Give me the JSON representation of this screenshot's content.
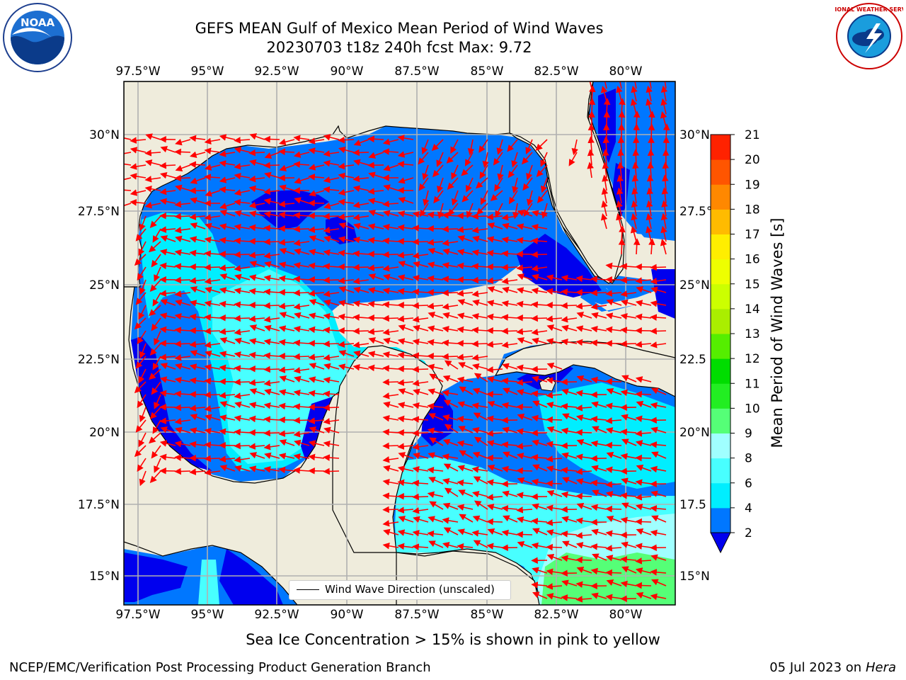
{
  "header": {
    "title_line1": "GEFS MEAN Gulf of Mexico Mean Period of Wind Waves",
    "title_line2": "20230703 t18z 240h fcst   Max: 9.72"
  },
  "logos": {
    "left": {
      "name": "noaa-logo",
      "text": "NOAA"
    },
    "right": {
      "name": "nws-logo",
      "text": "NATIONAL WEATHER SERVICE"
    }
  },
  "map": {
    "lon_ticks": [
      "97.5°W",
      "95°W",
      "92.5°W",
      "90°W",
      "87.5°W",
      "85°W",
      "82.5°W",
      "80°W"
    ],
    "lat_ticks": [
      "30°N",
      "27.5°N",
      "25°N",
      "22.5°N",
      "20°N",
      "17.5°N",
      "15°N"
    ],
    "lat_ticks_right": [
      "30°N",
      "27.5°",
      "25°N",
      "22.5",
      "20°N",
      "17.5",
      "15°N"
    ],
    "colors": {
      "land": "#efecdc",
      "coast": "#000000",
      "grid": "#b0b0b0",
      "arrow": "#ff0000"
    }
  },
  "legend": {
    "label": "Wind Wave Direction (unscaled)"
  },
  "colorbar": {
    "label": "Mean Period of Wind Waves [s]",
    "ticks": [
      "2",
      "4",
      "6",
      "8",
      "9",
      "10",
      "11",
      "12",
      "13",
      "14",
      "15",
      "16",
      "17",
      "18",
      "19",
      "20",
      "21"
    ],
    "colors": [
      "#0077ff",
      "#00eeff",
      "#48ffff",
      "#a0ffff",
      "#55ff77",
      "#22ee22",
      "#00dd00",
      "#55ee00",
      "#aaee00",
      "#ccff00",
      "#eeff00",
      "#ffee00",
      "#ffbb00",
      "#ff8800",
      "#ff5500",
      "#ff2200"
    ],
    "extend_color": "#0000ee"
  },
  "footer": {
    "subnote": "Sea Ice Concentration > 15% is shown in pink to yellow",
    "credit": "NCEP/EMC/Verification Post Processing Product Generation Branch",
    "date": "05 Jul 2023 on",
    "host": "Hera"
  }
}
